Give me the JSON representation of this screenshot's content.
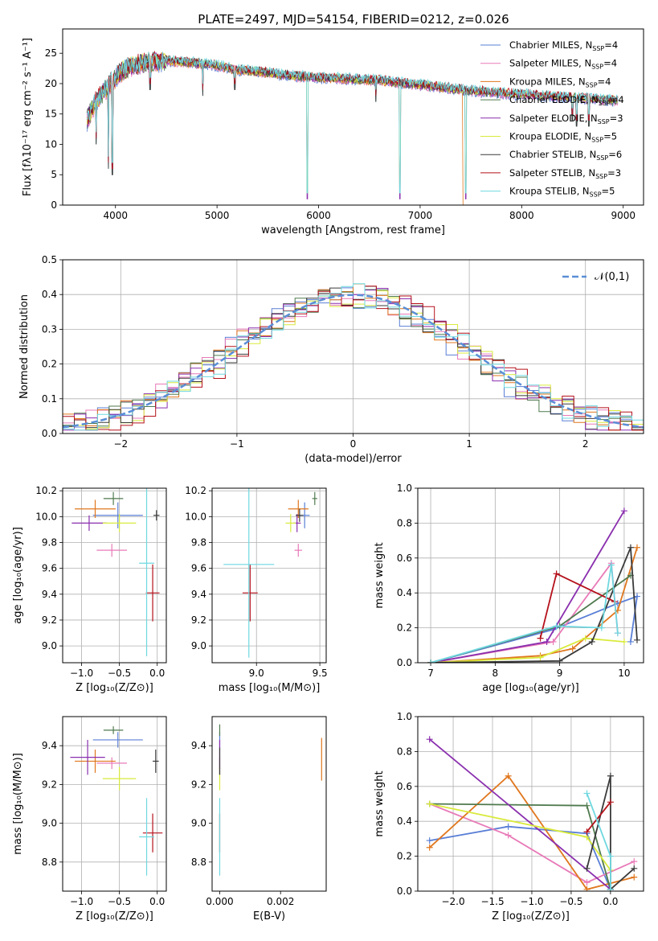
{
  "figure_title": "PLATE=2497, MJD=54154, FIBERID=0212, z=0.026",
  "models": [
    {
      "name": "Chabrier MILES",
      "n": "4",
      "color": "#5a7fd6"
    },
    {
      "name": "Salpeter MILES",
      "n": "4",
      "color": "#e87ab8"
    },
    {
      "name": "Kroupa MILES",
      "n": "4",
      "color": "#e0771e"
    },
    {
      "name": "Chabrier ELODIE",
      "n": "4",
      "color": "#4f7a4f"
    },
    {
      "name": "Salpeter ELODIE",
      "n": "3",
      "color": "#8a2fae"
    },
    {
      "name": "Kroupa ELODIE",
      "n": "5",
      "color": "#d9ea3c"
    },
    {
      "name": "Chabrier STELIB",
      "n": "6",
      "color": "#3a3a3a"
    },
    {
      "name": "Salpeter STELIB",
      "n": "3",
      "color": "#b5111b"
    },
    {
      "name": "Kroupa STELIB",
      "n": "5",
      "color": "#6fd8e0"
    }
  ],
  "chart_data": [
    {
      "id": "spectrum",
      "type": "line",
      "title": "PLATE=2497, MJD=54154, FIBERID=0212, z=0.026",
      "xlabel": "wavelength [Angstrom, rest frame]",
      "ylabel": "Flux [fλ10⁻¹⁷ erg cm⁻² s⁻¹ A⁻¹]",
      "xlim": [
        3480,
        9200
      ],
      "ylim": [
        0,
        29
      ],
      "xticks": [
        4000,
        5000,
        6000,
        7000,
        8000,
        9000
      ],
      "yticks": [
        0,
        5,
        10,
        15,
        20,
        25
      ],
      "grid": false,
      "legend": "top-right",
      "continuum": [
        [
          3720,
          14
        ],
        [
          3800,
          17
        ],
        [
          3900,
          19
        ],
        [
          4000,
          21
        ],
        [
          4100,
          22.5
        ],
        [
          4300,
          23.5
        ],
        [
          4500,
          23.8
        ],
        [
          4700,
          23.5
        ],
        [
          5000,
          23
        ],
        [
          5200,
          22.3
        ],
        [
          5500,
          21.8
        ],
        [
          5800,
          21.2
        ],
        [
          6000,
          21
        ],
        [
          6300,
          20.8
        ],
        [
          6600,
          20.5
        ],
        [
          7000,
          19.8
        ],
        [
          7400,
          19
        ],
        [
          7800,
          18.4
        ],
        [
          8200,
          18
        ],
        [
          8600,
          17.6
        ],
        [
          8950,
          17.2
        ]
      ],
      "drops": [
        [
          3810,
          10
        ],
        [
          3930,
          6
        ],
        [
          3970,
          5
        ],
        [
          4340,
          19
        ],
        [
          4860,
          18
        ],
        [
          5175,
          19
        ],
        [
          5890,
          0
        ],
        [
          6563,
          17
        ],
        [
          6800,
          0
        ],
        [
          7450,
          0
        ],
        [
          8498,
          14
        ],
        [
          8542,
          13
        ],
        [
          8662,
          13
        ]
      ]
    },
    {
      "id": "residuals",
      "type": "step",
      "xlabel": "(data-model)/error",
      "ylabel": "Normed distribution",
      "xlim": [
        -2.5,
        2.5
      ],
      "ylim": [
        0,
        0.5
      ],
      "xticks": [
        -2,
        -1,
        0,
        1,
        2
      ],
      "yticks": [
        0.0,
        0.1,
        0.2,
        0.3,
        0.4,
        0.5
      ],
      "grid": true,
      "legend": "top-right",
      "reference": {
        "name": "𝒩(0,1)",
        "mean": 0,
        "sigma": 1,
        "color": "#5a8ed6"
      }
    },
    {
      "id": "age_vs_Z",
      "type": "scatter-errorbar",
      "xlabel": "Z [log₁₀(Z/Z⊙)]",
      "ylabel": "age  [log₁₀(age/yr)]",
      "xlim": [
        -1.25,
        0.12
      ],
      "ylim": [
        8.87,
        10.22
      ],
      "xticks": [
        -1.0,
        -0.5,
        0.0
      ],
      "yticks": [
        9.0,
        9.2,
        9.4,
        9.6,
        9.8,
        10.0,
        10.2
      ],
      "grid": true,
      "points": [
        {
          "m": 0,
          "x": -0.52,
          "y": 10.01,
          "xe": 0.33,
          "ye": 0.1
        },
        {
          "m": 1,
          "x": -0.6,
          "y": 9.74,
          "xe": 0.2,
          "ye": 0.05
        },
        {
          "m": 2,
          "x": -0.82,
          "y": 10.06,
          "xe": 0.27,
          "ye": 0.07
        },
        {
          "m": 3,
          "x": -0.58,
          "y": 10.14,
          "xe": 0.13,
          "ye": 0.05
        },
        {
          "m": 4,
          "x": -0.9,
          "y": 9.95,
          "xe": 0.23,
          "ye": 0.06
        },
        {
          "m": 5,
          "x": -0.5,
          "y": 9.95,
          "xe": 0.22,
          "ye": 0.07
        },
        {
          "m": 6,
          "x": -0.01,
          "y": 10.01,
          "xe": 0.04,
          "ye": 0.04
        },
        {
          "m": 7,
          "x": -0.06,
          "y": 9.41,
          "xe": 0.09,
          "ye": 0.22
        },
        {
          "m": 8,
          "x": -0.14,
          "y": 9.64,
          "xe": 0.1,
          "ye": 0.72
        }
      ]
    },
    {
      "id": "age_vs_mass",
      "type": "scatter-errorbar",
      "xlabel": "mass [log₁₀(M/M⊙)]",
      "ylabel": "",
      "xlim": [
        8.65,
        9.55
      ],
      "ylim": [
        8.87,
        10.22
      ],
      "xticks": [
        9.0,
        9.5
      ],
      "yticks": [
        9.0,
        9.2,
        9.4,
        9.6,
        9.8,
        10.0,
        10.2
      ],
      "grid": true,
      "points": [
        {
          "m": 0,
          "x": 9.38,
          "y": 10.01,
          "xe": 0.04,
          "ye": 0.1
        },
        {
          "m": 1,
          "x": 9.33,
          "y": 9.74,
          "xe": 0.03,
          "ye": 0.05
        },
        {
          "m": 2,
          "x": 9.33,
          "y": 10.06,
          "xe": 0.08,
          "ye": 0.07
        },
        {
          "m": 3,
          "x": 9.46,
          "y": 10.14,
          "xe": 0.02,
          "ye": 0.05
        },
        {
          "m": 4,
          "x": 9.32,
          "y": 9.95,
          "xe": 0.03,
          "ye": 0.07
        },
        {
          "m": 5,
          "x": 9.27,
          "y": 9.95,
          "xe": 0.04,
          "ye": 0.07
        },
        {
          "m": 6,
          "x": 9.34,
          "y": 10.01,
          "xe": 0.03,
          "ye": 0.05
        },
        {
          "m": 7,
          "x": 8.95,
          "y": 9.41,
          "xe": 0.06,
          "ye": 0.22
        },
        {
          "m": 8,
          "x": 8.94,
          "y": 9.63,
          "xe": 0.2,
          "ye": 0.72
        }
      ]
    },
    {
      "id": "weight_vs_age",
      "type": "line",
      "xlabel": "age  [log₁₀(age/yr)]",
      "ylabel": "mass weight",
      "xlim": [
        6.8,
        10.3
      ],
      "ylim": [
        0,
        1.0
      ],
      "xticks": [
        7,
        8,
        9,
        10
      ],
      "yticks": [
        0.0,
        0.2,
        0.4,
        0.6,
        0.8,
        1.0
      ],
      "grid": true,
      "series": [
        {
          "m": 0,
          "pts": [
            [
              7.0,
              0.0
            ],
            [
              8.9,
              0.19
            ],
            [
              9.9,
              0.34
            ],
            [
              10.2,
              0.38
            ],
            [
              10.1,
              0.12
            ]
          ]
        },
        {
          "m": 1,
          "pts": [
            [
              7.0,
              0.0
            ],
            [
              8.9,
              0.12
            ],
            [
              9.8,
              0.57
            ],
            [
              9.9,
              0.17
            ]
          ]
        },
        {
          "m": 2,
          "pts": [
            [
              7.0,
              0.0
            ],
            [
              8.7,
              0.04
            ],
            [
              9.2,
              0.08
            ],
            [
              9.9,
              0.3
            ],
            [
              10.2,
              0.66
            ]
          ]
        },
        {
          "m": 3,
          "pts": [
            [
              7.0,
              0.0
            ],
            [
              9.0,
              0.21
            ],
            [
              10.1,
              0.5
            ]
          ]
        },
        {
          "m": 4,
          "pts": [
            [
              7.0,
              0.0
            ],
            [
              8.8,
              0.12
            ],
            [
              10.0,
              0.87
            ]
          ]
        },
        {
          "m": 5,
          "pts": [
            [
              7.0,
              0.0
            ],
            [
              8.7,
              0.03
            ],
            [
              9.4,
              0.14
            ],
            [
              10.0,
              0.12
            ]
          ]
        },
        {
          "m": 6,
          "pts": [
            [
              7.0,
              0.0
            ],
            [
              9.0,
              0.01
            ],
            [
              9.5,
              0.12
            ],
            [
              10.1,
              0.66
            ],
            [
              10.2,
              0.13
            ]
          ]
        },
        {
          "m": 7,
          "pts": [
            [
              8.7,
              0.14
            ],
            [
              8.95,
              0.51
            ],
            [
              9.85,
              0.35
            ]
          ]
        },
        {
          "m": 8,
          "pts": [
            [
              7.0,
              0.0
            ],
            [
              8.95,
              0.21
            ],
            [
              9.65,
              0.2
            ],
            [
              9.8,
              0.56
            ],
            [
              9.9,
              0.17
            ]
          ]
        }
      ]
    },
    {
      "id": "mass_vs_Z",
      "type": "scatter-errorbar",
      "xlabel": "Z [log₁₀(Z/Z⊙)]",
      "ylabel": "mass [log₁₀(M/M⊙)]",
      "xlim": [
        -1.25,
        0.12
      ],
      "ylim": [
        8.65,
        9.55
      ],
      "xticks": [
        -1.0,
        -0.5,
        0.0
      ],
      "yticks": [
        8.8,
        9.0,
        9.2,
        9.4
      ],
      "grid": true,
      "points": [
        {
          "m": 0,
          "x": -0.52,
          "y": 9.43,
          "xe": 0.33,
          "ye": 0.04
        },
        {
          "m": 1,
          "x": -0.6,
          "y": 9.31,
          "xe": 0.2,
          "ye": 0.03
        },
        {
          "m": 2,
          "x": -0.82,
          "y": 9.32,
          "xe": 0.27,
          "ye": 0.06
        },
        {
          "m": 3,
          "x": -0.58,
          "y": 9.48,
          "xe": 0.13,
          "ye": 0.02
        },
        {
          "m": 4,
          "x": -0.92,
          "y": 9.34,
          "xe": 0.23,
          "ye": 0.09
        },
        {
          "m": 5,
          "x": -0.5,
          "y": 9.23,
          "xe": 0.22,
          "ye": 0.06
        },
        {
          "m": 6,
          "x": -0.02,
          "y": 9.32,
          "xe": 0.04,
          "ye": 0.06
        },
        {
          "m": 7,
          "x": -0.06,
          "y": 8.95,
          "xe": 0.13,
          "ye": 0.1
        },
        {
          "m": 8,
          "x": -0.14,
          "y": 8.93,
          "xe": 0.1,
          "ye": 0.2
        }
      ]
    },
    {
      "id": "mass_vs_ebv",
      "type": "scatter-errorbar",
      "xlabel": "E(B-V)",
      "ylabel": "",
      "xlim": [
        -0.00025,
        0.0035
      ],
      "ylim": [
        8.65,
        9.55
      ],
      "xticks": [
        0.0,
        0.002
      ],
      "yticks": [
        8.8,
        9.0,
        9.2,
        9.4
      ],
      "grid": false,
      "points": [
        {
          "m": 0,
          "x": 0.0,
          "y": 9.43,
          "xe": 0,
          "ye": 0.04
        },
        {
          "m": 1,
          "x": 0.0,
          "y": 9.31,
          "xe": 0,
          "ye": 0.03
        },
        {
          "m": 2,
          "x": 0.00335,
          "y": 9.33,
          "xe": 0,
          "ye": 0.11
        },
        {
          "m": 3,
          "x": 0.0,
          "y": 9.48,
          "xe": 0,
          "ye": 0.03
        },
        {
          "m": 4,
          "x": 0.0,
          "y": 9.34,
          "xe": 0,
          "ye": 0.09
        },
        {
          "m": 5,
          "x": 0.0,
          "y": 9.23,
          "xe": 0,
          "ye": 0.06
        },
        {
          "m": 6,
          "x": 0.0,
          "y": 9.32,
          "xe": 0,
          "ye": 0.07
        },
        {
          "m": 7,
          "x": 0.0,
          "y": 8.95,
          "xe": 0,
          "ye": 0.1
        },
        {
          "m": 8,
          "x": 0.0,
          "y": 8.93,
          "xe": 0,
          "ye": 0.2
        }
      ]
    },
    {
      "id": "weight_vs_Z",
      "type": "line",
      "xlabel": "Z [log₁₀(Z/Z⊙)]",
      "ylabel": "mass weight",
      "xlim": [
        -2.45,
        0.42
      ],
      "ylim": [
        0,
        1.0
      ],
      "xticks": [
        -2.0,
        -1.5,
        -1.0,
        -0.5,
        0.0
      ],
      "yticks": [
        0.0,
        0.2,
        0.4,
        0.6,
        0.8,
        1.0
      ],
      "grid": true,
      "series": [
        {
          "m": 0,
          "pts": [
            [
              -2.3,
              0.29
            ],
            [
              -1.3,
              0.37
            ],
            [
              -0.3,
              0.33
            ],
            [
              0.0,
              0.01
            ]
          ]
        },
        {
          "m": 1,
          "pts": [
            [
              -2.3,
              0.5
            ],
            [
              -1.3,
              0.32
            ],
            [
              -0.3,
              0.05
            ],
            [
              0.3,
              0.17
            ]
          ]
        },
        {
          "m": 2,
          "pts": [
            [
              -2.3,
              0.25
            ],
            [
              -1.3,
              0.66
            ],
            [
              -0.3,
              0.01
            ],
            [
              0.3,
              0.08
            ]
          ]
        },
        {
          "m": 3,
          "pts": [
            [
              -2.3,
              0.5
            ],
            [
              -0.3,
              0.49
            ],
            [
              0.0,
              0.01
            ]
          ]
        },
        {
          "m": 4,
          "pts": [
            [
              -2.3,
              0.87
            ],
            [
              0.0,
              0.01
            ]
          ]
        },
        {
          "m": 5,
          "pts": [
            [
              -2.3,
              0.5
            ],
            [
              -0.3,
              0.31
            ],
            [
              0.0,
              0.12
            ]
          ]
        },
        {
          "m": 6,
          "pts": [
            [
              -0.3,
              0.13
            ],
            [
              0.0,
              0.66
            ],
            [
              0.0,
              0.01
            ],
            [
              0.3,
              0.13
            ]
          ]
        },
        {
          "m": 7,
          "pts": [
            [
              -0.3,
              0.34
            ],
            [
              0.0,
              0.51
            ]
          ]
        },
        {
          "m": 8,
          "pts": [
            [
              -0.3,
              0.56
            ],
            [
              0.0,
              0.2
            ],
            [
              0.0,
              0.01
            ]
          ]
        }
      ]
    }
  ]
}
